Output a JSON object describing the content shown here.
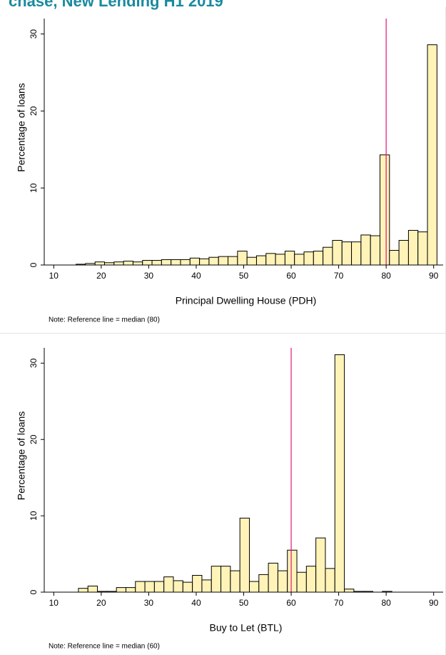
{
  "title": "chase, New Lending H1 2019",
  "chart_data": [
    {
      "type": "histogram",
      "x_label": "Principal Dwelling House (PDH)",
      "y_label": "Percentage of loans",
      "note": "Note: Reference line = median (80)",
      "bins": [
        14.7,
        16.7,
        18.7,
        20.7,
        22.7,
        24.7,
        26.7,
        28.7,
        30.7,
        32.7,
        34.7,
        36.7,
        38.7,
        40.7,
        42.7,
        44.7,
        46.7,
        48.7,
        50.7,
        52.7,
        54.7,
        56.7,
        58.7,
        60.7,
        62.7,
        64.7,
        66.7,
        68.7,
        70.7,
        72.7,
        74.7,
        76.7,
        78.7,
        80.7,
        82.7,
        84.7,
        86.7,
        88.7,
        90.7
      ],
      "values": [
        0.1,
        0.2,
        0.4,
        0.3,
        0.4,
        0.5,
        0.4,
        0.6,
        0.6,
        0.7,
        0.7,
        0.7,
        0.9,
        0.8,
        1.0,
        1.1,
        1.1,
        1.8,
        1.0,
        1.2,
        1.5,
        1.4,
        1.8,
        1.4,
        1.7,
        1.8,
        2.3,
        3.2,
        3.0,
        3.0,
        3.9,
        3.8,
        14.3,
        1.9,
        3.2,
        4.5,
        4.3,
        28.6
      ],
      "color": "#fff3b8",
      "edge_color": "#000000",
      "xlim": [
        8,
        92
      ],
      "ylim": [
        0,
        32
      ],
      "xticks": [
        10,
        20,
        30,
        40,
        50,
        60,
        70,
        80,
        90
      ],
      "yticks": [
        0,
        10,
        20,
        30
      ],
      "reference_line": {
        "value": 80,
        "color": "#e0157d"
      }
    },
    {
      "type": "histogram",
      "x_label": "Buy to Let (BTL)",
      "y_label": "Percentage of loans",
      "note": "Note: Reference line = median (60)",
      "bins": [
        15.2,
        17.2,
        19.2,
        21.2,
        23.2,
        25.2,
        27.2,
        29.2,
        31.2,
        33.2,
        35.2,
        37.2,
        39.2,
        41.2,
        43.2,
        45.2,
        47.2,
        49.2,
        51.2,
        53.2,
        55.2,
        57.2,
        59.2,
        61.2,
        63.2,
        65.2,
        67.2,
        69.2,
        71.2,
        73.2,
        75.2,
        77.2,
        79.2,
        81.2
      ],
      "values": [
        0.5,
        0.8,
        0.1,
        0.1,
        0.6,
        0.6,
        1.4,
        1.4,
        1.4,
        2.0,
        1.5,
        1.3,
        2.2,
        1.6,
        3.4,
        3.4,
        2.8,
        9.7,
        1.4,
        2.3,
        3.8,
        2.8,
        5.5,
        2.6,
        3.4,
        7.1,
        3.1,
        31.1,
        0.4,
        0.1,
        0.1,
        0,
        0.1
      ],
      "color": "#fff3b8",
      "edge_color": "#000000",
      "xlim": [
        8,
        92
      ],
      "ylim": [
        0,
        32
      ],
      "xticks": [
        10,
        20,
        30,
        40,
        50,
        60,
        70,
        80,
        90
      ],
      "yticks": [
        0,
        10,
        20,
        30
      ],
      "reference_line": {
        "value": 60,
        "color": "#e0157d"
      }
    }
  ]
}
